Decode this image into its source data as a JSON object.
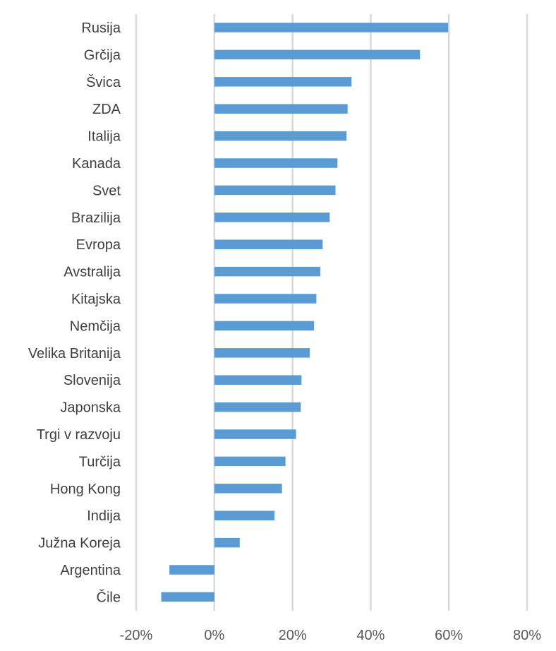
{
  "chart_data": {
    "type": "bar",
    "orientation": "horizontal",
    "categories": [
      "Rusija",
      "Grčija",
      "Švica",
      "ZDA",
      "Italija",
      "Kanada",
      "Svet",
      "Brazilija",
      "Evropa",
      "Avstralija",
      "Kitajska",
      "Nemčija",
      "Velika Britanija",
      "Slovenija",
      "Japonska",
      "Trgi v razvoju",
      "Turčija",
      "Hong Kong",
      "Indija",
      "Južna Koreja",
      "Argentina",
      "Čile"
    ],
    "values": [
      59.8,
      52.6,
      35.1,
      34.1,
      33.8,
      31.5,
      31.0,
      29.5,
      27.7,
      27.1,
      26.1,
      25.5,
      24.4,
      22.3,
      22.1,
      20.9,
      18.2,
      17.3,
      15.4,
      6.5,
      -11.5,
      -13.6
    ],
    "title": "",
    "xlabel": "",
    "ylabel": "",
    "xlim": [
      -20,
      80
    ],
    "xticks": [
      -20,
      0,
      20,
      40,
      60,
      80
    ],
    "xtick_labels": [
      "-20%",
      "0%",
      "20%",
      "40%",
      "60%",
      "80%"
    ],
    "grid": true,
    "legend": "none",
    "colors": {
      "bar": "#5b9bd5",
      "grid": "#d9d9d9",
      "text": "#404040"
    }
  }
}
